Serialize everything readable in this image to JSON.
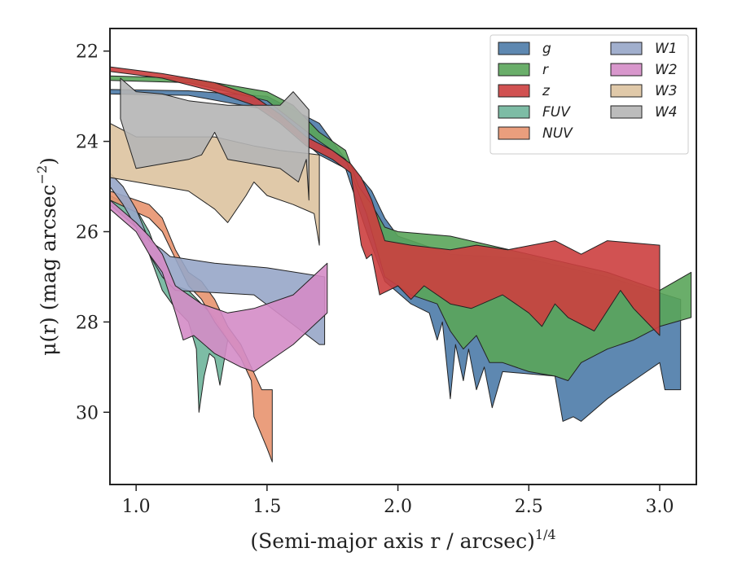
{
  "chart_data": {
    "type": "area",
    "title": "",
    "xlabel": "(Semi-major axis r / arcsec)",
    "xlabel_exponent": "1/4",
    "ylabel_prefix": "μ(r) (mag arcsec",
    "ylabel_exponent": "−2",
    "ylabel_suffix": ")",
    "xlim": [
      0.9,
      3.14
    ],
    "ylim": [
      31.6,
      21.5
    ],
    "y_inverted": true,
    "x_ticks": [
      1.0,
      1.5,
      2.0,
      2.5,
      3.0
    ],
    "x_tick_labels": [
      "1.0",
      "1.5",
      "2.0",
      "2.5",
      "3.0"
    ],
    "y_ticks": [
      22,
      24,
      26,
      28,
      30
    ],
    "y_tick_labels": [
      "22",
      "24",
      "26",
      "28",
      "30"
    ],
    "grid": false,
    "legend_position": "top-right",
    "series": [
      {
        "name": "g",
        "color": "#4c7ba8",
        "upper": [
          [
            0.9,
            22.85
          ],
          [
            1.2,
            22.88
          ],
          [
            1.5,
            23.0
          ],
          [
            1.7,
            23.6
          ],
          [
            1.8,
            24.4
          ],
          [
            1.9,
            25.1
          ],
          [
            1.95,
            25.7
          ],
          [
            2.0,
            26.1
          ],
          [
            2.2,
            26.5
          ],
          [
            2.5,
            26.6
          ],
          [
            2.8,
            27.0
          ],
          [
            3.08,
            27.5
          ]
        ],
        "lower": [
          [
            0.9,
            22.95
          ],
          [
            1.2,
            22.98
          ],
          [
            1.5,
            23.3
          ],
          [
            1.7,
            24.3
          ],
          [
            1.8,
            24.6
          ],
          [
            1.88,
            26.0
          ],
          [
            1.95,
            27.1
          ],
          [
            2.05,
            27.6
          ],
          [
            2.12,
            27.8
          ],
          [
            2.15,
            28.4
          ],
          [
            2.17,
            28.0
          ],
          [
            2.2,
            29.7
          ],
          [
            2.22,
            28.5
          ],
          [
            2.25,
            29.3
          ],
          [
            2.27,
            28.6
          ],
          [
            2.3,
            29.5
          ],
          [
            2.33,
            29.0
          ],
          [
            2.36,
            29.9
          ],
          [
            2.4,
            29.1
          ],
          [
            2.6,
            29.2
          ],
          [
            2.63,
            30.2
          ],
          [
            2.67,
            30.1
          ],
          [
            2.7,
            30.2
          ],
          [
            2.8,
            29.7
          ],
          [
            2.95,
            29.1
          ],
          [
            3.0,
            28.9
          ],
          [
            3.02,
            29.5
          ],
          [
            3.08,
            29.5
          ]
        ]
      },
      {
        "name": "r",
        "color": "#5aa55a",
        "upper": [
          [
            0.9,
            22.55
          ],
          [
            1.2,
            22.6
          ],
          [
            1.5,
            22.9
          ],
          [
            1.6,
            23.2
          ],
          [
            1.7,
            23.8
          ],
          [
            1.8,
            24.2
          ],
          [
            1.85,
            25.0
          ],
          [
            1.9,
            25.4
          ],
          [
            1.95,
            25.9
          ],
          [
            2.0,
            26.0
          ],
          [
            2.2,
            26.1
          ],
          [
            2.5,
            26.5
          ],
          [
            2.8,
            26.9
          ],
          [
            3.0,
            27.3
          ],
          [
            3.12,
            26.9
          ]
        ],
        "lower": [
          [
            0.9,
            22.65
          ],
          [
            1.2,
            22.7
          ],
          [
            1.5,
            23.1
          ],
          [
            1.7,
            24.0
          ],
          [
            1.8,
            24.4
          ],
          [
            1.88,
            25.6
          ],
          [
            1.95,
            27.0
          ],
          [
            2.05,
            27.4
          ],
          [
            2.15,
            27.6
          ],
          [
            2.2,
            28.2
          ],
          [
            2.25,
            28.6
          ],
          [
            2.3,
            28.3
          ],
          [
            2.35,
            28.9
          ],
          [
            2.4,
            28.9
          ],
          [
            2.5,
            29.1
          ],
          [
            2.6,
            29.2
          ],
          [
            2.65,
            29.3
          ],
          [
            2.7,
            28.9
          ],
          [
            2.8,
            28.6
          ],
          [
            2.9,
            28.4
          ],
          [
            3.0,
            28.1
          ],
          [
            3.12,
            27.9
          ]
        ]
      },
      {
        "name": "z",
        "color": "#cc3f3f",
        "upper": [
          [
            0.9,
            22.35
          ],
          [
            1.1,
            22.5
          ],
          [
            1.3,
            22.7
          ],
          [
            1.45,
            23.0
          ],
          [
            1.55,
            23.4
          ],
          [
            1.65,
            23.9
          ],
          [
            1.75,
            24.2
          ],
          [
            1.82,
            24.5
          ],
          [
            1.86,
            24.8
          ],
          [
            1.9,
            25.3
          ],
          [
            1.95,
            26.2
          ],
          [
            2.05,
            26.3
          ],
          [
            2.2,
            26.4
          ],
          [
            2.3,
            26.3
          ],
          [
            2.42,
            26.4
          ],
          [
            2.6,
            26.2
          ],
          [
            2.7,
            26.5
          ],
          [
            2.8,
            26.2
          ],
          [
            3.0,
            26.3
          ]
        ],
        "lower": [
          [
            0.9,
            22.45
          ],
          [
            1.1,
            22.6
          ],
          [
            1.3,
            22.9
          ],
          [
            1.45,
            23.2
          ],
          [
            1.55,
            23.6
          ],
          [
            1.65,
            24.1
          ],
          [
            1.75,
            24.4
          ],
          [
            1.82,
            24.7
          ],
          [
            1.84,
            25.5
          ],
          [
            1.86,
            26.3
          ],
          [
            1.88,
            26.6
          ],
          [
            1.9,
            26.5
          ],
          [
            1.93,
            27.4
          ],
          [
            2.0,
            27.2
          ],
          [
            2.05,
            27.5
          ],
          [
            2.1,
            27.2
          ],
          [
            2.2,
            27.6
          ],
          [
            2.28,
            27.7
          ],
          [
            2.4,
            27.4
          ],
          [
            2.5,
            27.8
          ],
          [
            2.55,
            28.1
          ],
          [
            2.6,
            27.6
          ],
          [
            2.65,
            27.9
          ],
          [
            2.75,
            28.2
          ],
          [
            2.85,
            27.3
          ],
          [
            2.9,
            27.7
          ],
          [
            3.0,
            28.3
          ]
        ]
      },
      {
        "name": "FUV",
        "color": "#6fb59b",
        "upper": [
          [
            0.9,
            25.2
          ],
          [
            1.0,
            25.5
          ],
          [
            1.05,
            26.0
          ],
          [
            1.1,
            26.8
          ],
          [
            1.15,
            27.2
          ],
          [
            1.2,
            27.3
          ],
          [
            1.25,
            27.6
          ],
          [
            1.3,
            27.9
          ],
          [
            1.35,
            28.4
          ]
        ],
        "lower": [
          [
            0.9,
            25.4
          ],
          [
            1.0,
            25.9
          ],
          [
            1.05,
            26.5
          ],
          [
            1.1,
            27.3
          ],
          [
            1.15,
            27.7
          ],
          [
            1.2,
            28.0
          ],
          [
            1.23,
            28.6
          ],
          [
            1.24,
            30.0
          ],
          [
            1.26,
            29.2
          ],
          [
            1.28,
            28.7
          ],
          [
            1.3,
            28.8
          ],
          [
            1.32,
            29.4
          ],
          [
            1.35,
            28.4
          ]
        ]
      },
      {
        "name": "NUV",
        "color": "#e8936f",
        "upper": [
          [
            0.9,
            25.1
          ],
          [
            1.05,
            25.4
          ],
          [
            1.1,
            25.7
          ],
          [
            1.15,
            26.4
          ],
          [
            1.2,
            26.9
          ],
          [
            1.25,
            27.1
          ],
          [
            1.3,
            27.5
          ],
          [
            1.35,
            28.1
          ],
          [
            1.4,
            28.5
          ],
          [
            1.48,
            29.5
          ],
          [
            1.52,
            29.5
          ]
        ],
        "lower": [
          [
            0.9,
            25.3
          ],
          [
            1.05,
            25.7
          ],
          [
            1.1,
            26.0
          ],
          [
            1.15,
            26.6
          ],
          [
            1.2,
            27.2
          ],
          [
            1.25,
            27.5
          ],
          [
            1.3,
            28.0
          ],
          [
            1.35,
            28.4
          ],
          [
            1.4,
            28.8
          ],
          [
            1.44,
            29.3
          ],
          [
            1.45,
            30.1
          ],
          [
            1.5,
            30.8
          ],
          [
            1.52,
            31.1
          ]
        ]
      },
      {
        "name": "W1",
        "color": "#97a6c8",
        "upper": [
          [
            0.9,
            24.7
          ],
          [
            0.95,
            25.0
          ],
          [
            1.0,
            25.5
          ],
          [
            1.05,
            26.2
          ],
          [
            1.1,
            26.4
          ],
          [
            1.13,
            26.55
          ],
          [
            1.3,
            26.7
          ],
          [
            1.5,
            26.8
          ],
          [
            1.72,
            27.0
          ]
        ],
        "lower": [
          [
            0.9,
            25.0
          ],
          [
            0.95,
            25.4
          ],
          [
            1.0,
            25.9
          ],
          [
            1.05,
            26.5
          ],
          [
            1.1,
            27.0
          ],
          [
            1.15,
            27.3
          ],
          [
            1.3,
            27.35
          ],
          [
            1.45,
            27.4
          ],
          [
            1.7,
            28.5
          ],
          [
            1.72,
            28.5
          ]
        ]
      },
      {
        "name": "W2",
        "color": "#d48cc6",
        "upper": [
          [
            0.9,
            25.3
          ],
          [
            1.0,
            25.8
          ],
          [
            1.05,
            26.1
          ],
          [
            1.1,
            26.5
          ],
          [
            1.15,
            27.2
          ],
          [
            1.25,
            27.6
          ],
          [
            1.35,
            27.8
          ],
          [
            1.45,
            27.7
          ],
          [
            1.6,
            27.4
          ],
          [
            1.73,
            26.7
          ]
        ],
        "lower": [
          [
            0.9,
            25.5
          ],
          [
            1.0,
            26.0
          ],
          [
            1.05,
            26.5
          ],
          [
            1.1,
            26.9
          ],
          [
            1.15,
            27.8
          ],
          [
            1.18,
            28.4
          ],
          [
            1.22,
            28.3
          ],
          [
            1.3,
            28.7
          ],
          [
            1.4,
            29.0
          ],
          [
            1.45,
            29.1
          ],
          [
            1.6,
            28.5
          ],
          [
            1.73,
            27.8
          ]
        ]
      },
      {
        "name": "W3",
        "color": "#ddc3a0",
        "upper": [
          [
            0.9,
            23.6
          ],
          [
            1.0,
            23.9
          ],
          [
            1.2,
            23.9
          ],
          [
            1.3,
            23.9
          ],
          [
            1.45,
            24.1
          ],
          [
            1.55,
            24.2
          ],
          [
            1.7,
            24.3
          ]
        ],
        "lower": [
          [
            0.9,
            24.8
          ],
          [
            1.0,
            24.9
          ],
          [
            1.2,
            25.1
          ],
          [
            1.3,
            25.5
          ],
          [
            1.35,
            25.8
          ],
          [
            1.42,
            25.2
          ],
          [
            1.45,
            24.9
          ],
          [
            1.5,
            25.2
          ],
          [
            1.6,
            25.4
          ],
          [
            1.68,
            25.6
          ],
          [
            1.7,
            26.3
          ]
        ]
      },
      {
        "name": "W4",
        "color": "#b5b5b5",
        "upper": [
          [
            0.94,
            22.6
          ],
          [
            1.0,
            22.9
          ],
          [
            1.1,
            22.95
          ],
          [
            1.2,
            23.1
          ],
          [
            1.35,
            23.2
          ],
          [
            1.45,
            23.2
          ],
          [
            1.55,
            23.2
          ],
          [
            1.6,
            22.9
          ],
          [
            1.66,
            23.3
          ]
        ],
        "lower": [
          [
            0.94,
            23.5
          ],
          [
            1.0,
            24.6
          ],
          [
            1.1,
            24.5
          ],
          [
            1.2,
            24.4
          ],
          [
            1.25,
            24.3
          ],
          [
            1.3,
            23.8
          ],
          [
            1.35,
            24.4
          ],
          [
            1.45,
            24.5
          ],
          [
            1.55,
            24.6
          ],
          [
            1.62,
            24.9
          ],
          [
            1.65,
            24.4
          ],
          [
            1.66,
            25.3
          ]
        ]
      }
    ]
  }
}
